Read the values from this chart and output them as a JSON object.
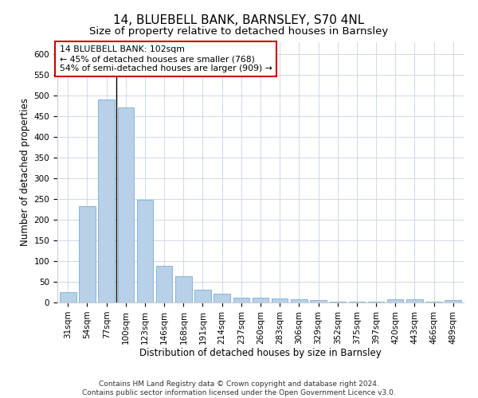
{
  "title": "14, BLUEBELL BANK, BARNSLEY, S70 4NL",
  "subtitle": "Size of property relative to detached houses in Barnsley",
  "xlabel": "Distribution of detached houses by size in Barnsley",
  "ylabel": "Number of detached properties",
  "footer_line1": "Contains HM Land Registry data © Crown copyright and database right 2024.",
  "footer_line2": "Contains public sector information licensed under the Open Government Licence v3.0.",
  "bar_color": "#b8d0e8",
  "bar_edge_color": "#7aaed4",
  "annotation_line1": "14 BLUEBELL BANK: 102sqm",
  "annotation_line2": "← 45% of detached houses are smaller (768)",
  "annotation_line3": "54% of semi-detached houses are larger (909) →",
  "annotation_box_edge": "#cc0000",
  "vline_color": "#000000",
  "categories": [
    "31sqm",
    "54sqm",
    "77sqm",
    "100sqm",
    "123sqm",
    "146sqm",
    "168sqm",
    "191sqm",
    "214sqm",
    "237sqm",
    "260sqm",
    "283sqm",
    "306sqm",
    "329sqm",
    "352sqm",
    "375sqm",
    "397sqm",
    "420sqm",
    "443sqm",
    "466sqm",
    "489sqm"
  ],
  "values": [
    25,
    232,
    490,
    472,
    248,
    88,
    63,
    31,
    22,
    12,
    11,
    9,
    8,
    5,
    2,
    2,
    2,
    7,
    7,
    2,
    5
  ],
  "highlight_index": 3,
  "vline_x": 2.5,
  "ylim": [
    0,
    630
  ],
  "yticks": [
    0,
    50,
    100,
    150,
    200,
    250,
    300,
    350,
    400,
    450,
    500,
    550,
    600
  ],
  "background_color": "#ffffff",
  "grid_color": "#d0d8e8",
  "title_fontsize": 11,
  "subtitle_fontsize": 9.5,
  "axis_label_fontsize": 8.5,
  "tick_fontsize": 7.5,
  "footer_fontsize": 6.5
}
